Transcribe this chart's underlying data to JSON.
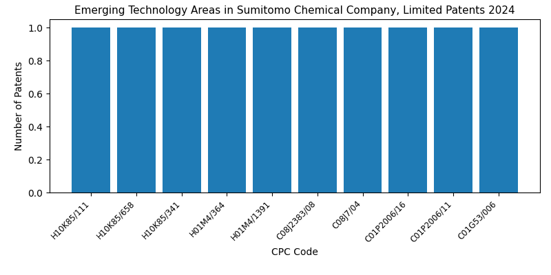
{
  "title": "Emerging Technology Areas in Sumitomo Chemical Company, Limited Patents 2024",
  "categories": [
    "H10K85/111",
    "H10K85/658",
    "H10K85/341",
    "H01M4/364",
    "H01M4/1391",
    "C08J2383/08",
    "C08J7/04",
    "C01P2006/16",
    "C01P2006/11",
    "C01G53/006"
  ],
  "values": [
    1,
    1,
    1,
    1,
    1,
    1,
    1,
    1,
    1,
    1
  ],
  "bar_color": "#1f7bb5",
  "xlabel": "CPC Code",
  "ylabel": "Number of Patents",
  "ylim": [
    0,
    1.05
  ],
  "title_fontsize": 11,
  "label_fontsize": 10,
  "tick_fontsize": 8.5,
  "background_color": "#ffffff",
  "bar_width": 0.85
}
